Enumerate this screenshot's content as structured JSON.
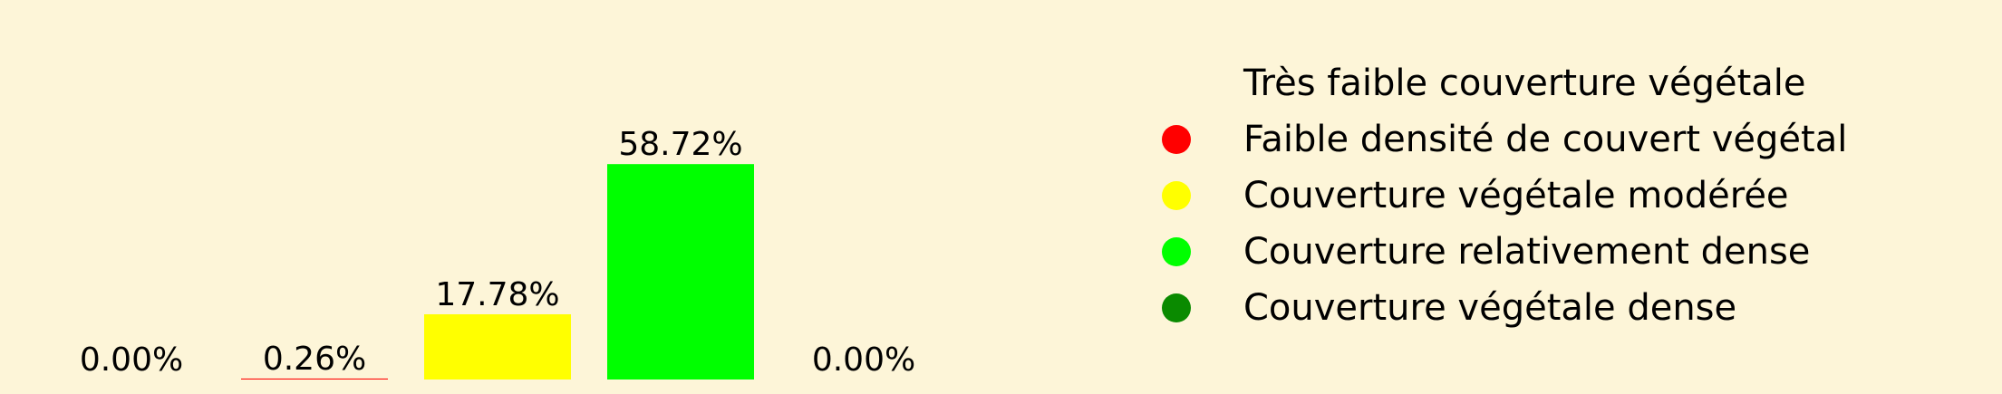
{
  "chart_data": {
    "type": "bar",
    "categories": [
      "Très faible couverture végétale",
      "Faible densité de couvert végétal",
      "Couverture végétale modérée",
      "Couverture relativement dense",
      "Couverture végétale dense"
    ],
    "values": [
      0.0,
      0.26,
      17.78,
      58.72,
      0.0
    ],
    "value_labels": [
      "0.00%",
      "0.26%",
      "17.78%",
      "58.72%",
      "0.00%"
    ],
    "colors": [
      "#fdf5d8",
      "#ff0000",
      "#ffff00",
      "#00ff00",
      "#0a8a00"
    ],
    "ylim": [
      0,
      60
    ],
    "grid": false,
    "legend_position": "right"
  }
}
